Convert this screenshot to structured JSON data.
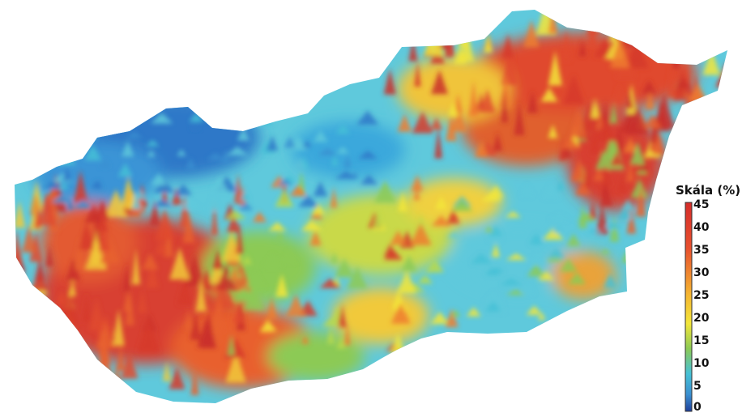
{
  "legend": {
    "title": "Skála (%)",
    "ticks": [
      "45",
      "40",
      "35",
      "30",
      "25",
      "20",
      "15",
      "10",
      "5",
      "0"
    ],
    "colors": [
      "#d62d2a",
      "#e04a2e",
      "#ef7d2f",
      "#f5b531",
      "#f3e63a",
      "#b9d94a",
      "#6cc35c",
      "#46c1d6",
      "#3a8fd0",
      "#1e3f9a"
    ]
  }
}
